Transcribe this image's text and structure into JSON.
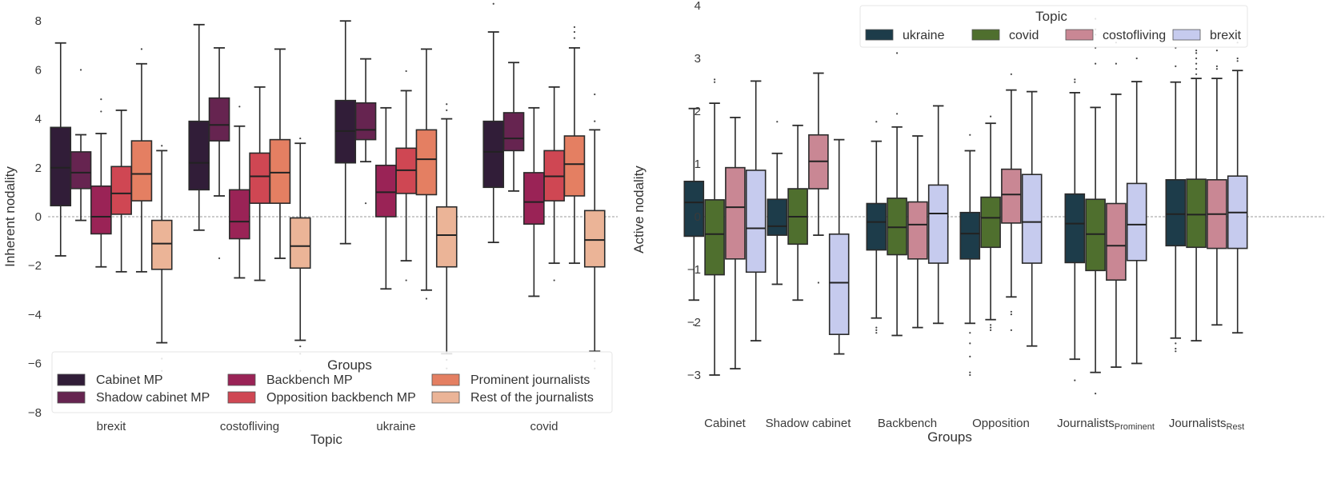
{
  "chart_data": [
    {
      "type": "box",
      "title": "",
      "xlabel": "Topic",
      "ylabel": "Inherent nodality",
      "ylim": [
        -8,
        8.6
      ],
      "yticks": [
        8,
        6,
        4,
        2,
        0,
        -2,
        -4,
        -6,
        -8
      ],
      "yticks_labels": [
        "8",
        "6",
        "4",
        "2",
        "0",
        "−2",
        "−4",
        "−6",
        "−8"
      ],
      "reference_line": 0,
      "categories": [
        "brexit",
        "costofliving",
        "ukraine",
        "covid"
      ],
      "legend": {
        "title": "Groups",
        "placement": "bottom",
        "entries": [
          "Cabinet MP",
          "Shadow cabinet MP",
          "Backbench MP",
          "Opposition backbench MP",
          "Prominent journalists",
          "Rest of the journalists"
        ]
      },
      "series": [
        {
          "name": "Cabinet MP",
          "color": "#311d38",
          "boxes": [
            {
              "whislo": -1.6,
              "q1": 0.45,
              "med": 2.0,
              "q3": 3.65,
              "whishi": 7.1,
              "fliers": []
            },
            {
              "whislo": -0.55,
              "q1": 1.1,
              "med": 2.2,
              "q3": 3.9,
              "whishi": 7.85,
              "fliers": []
            },
            {
              "whislo": -1.1,
              "q1": 2.2,
              "med": 3.5,
              "q3": 4.75,
              "whishi": 8.0,
              "fliers": []
            },
            {
              "whislo": -1.05,
              "q1": 1.2,
              "med": 2.65,
              "q3": 3.9,
              "whishi": 7.55,
              "fliers": [
                8.7
              ]
            }
          ]
        },
        {
          "name": "Shadow cabinet MP",
          "color": "#662450",
          "boxes": [
            {
              "whislo": -0.15,
              "q1": 1.15,
              "med": 1.8,
              "q3": 2.65,
              "whishi": 3.35,
              "fliers": [
                6.0
              ]
            },
            {
              "whislo": 0.85,
              "q1": 3.1,
              "med": 3.75,
              "q3": 4.85,
              "whishi": 6.9,
              "fliers": [
                -1.7
              ]
            },
            {
              "whislo": 2.25,
              "q1": 3.15,
              "med": 3.55,
              "q3": 4.65,
              "whishi": 6.45,
              "fliers": [
                0.55
              ]
            },
            {
              "whislo": 1.05,
              "q1": 2.7,
              "med": 3.2,
              "q3": 4.25,
              "whishi": 6.3,
              "fliers": []
            }
          ]
        },
        {
          "name": "Backbench MP",
          "color": "#9a2356",
          "boxes": [
            {
              "whislo": -2.05,
              "q1": -0.7,
              "med": 0.0,
              "q3": 1.25,
              "whishi": 3.4,
              "fliers": [
                4.8,
                4.3
              ]
            },
            {
              "whislo": -2.5,
              "q1": -0.9,
              "med": -0.2,
              "q3": 1.1,
              "whishi": 3.7,
              "fliers": [
                4.5
              ]
            },
            {
              "whislo": -2.95,
              "q1": 0.0,
              "med": 1.0,
              "q3": 2.1,
              "whishi": 4.45,
              "fliers": []
            },
            {
              "whislo": -3.25,
              "q1": -0.3,
              "med": 0.6,
              "q3": 1.8,
              "whishi": 4.45,
              "fliers": []
            }
          ]
        },
        {
          "name": "Opposition backbench MP",
          "color": "#cf4753",
          "boxes": [
            {
              "whislo": -2.25,
              "q1": 0.1,
              "med": 0.95,
              "q3": 2.05,
              "whishi": 4.35,
              "fliers": []
            },
            {
              "whislo": -2.6,
              "q1": 0.55,
              "med": 1.65,
              "q3": 2.6,
              "whishi": 5.3,
              "fliers": []
            },
            {
              "whislo": -1.8,
              "q1": 0.95,
              "med": 1.9,
              "q3": 2.8,
              "whishi": 5.15,
              "fliers": [
                5.95,
                -2.6
              ]
            },
            {
              "whislo": -1.9,
              "q1": 0.65,
              "med": 1.65,
              "q3": 2.7,
              "whishi": 5.3,
              "fliers": [
                -2.6
              ]
            }
          ]
        },
        {
          "name": "Prominent journalists",
          "color": "#e47f62",
          "boxes": [
            {
              "whislo": -2.25,
              "q1": 0.65,
              "med": 1.75,
              "q3": 3.1,
              "whishi": 6.25,
              "fliers": [
                6.85
              ]
            },
            {
              "whislo": -1.7,
              "q1": 0.55,
              "med": 1.8,
              "q3": 3.15,
              "whishi": 6.85,
              "fliers": []
            },
            {
              "whislo": -3.0,
              "q1": 0.9,
              "med": 2.35,
              "q3": 3.55,
              "whishi": 6.85,
              "fliers": [
                -3.35
              ]
            },
            {
              "whislo": -1.9,
              "q1": 0.85,
              "med": 2.15,
              "q3": 3.3,
              "whishi": 6.9,
              "fliers": [
                7.3,
                7.55,
                7.75
              ]
            }
          ]
        },
        {
          "name": "Rest of the journalists",
          "color": "#ebb497",
          "boxes": [
            {
              "whislo": -5.15,
              "q1": -2.15,
              "med": -1.1,
              "q3": -0.15,
              "whishi": 2.7,
              "fliers": [
                2.9,
                -5.8,
                -6.3
              ]
            },
            {
              "whislo": -5.05,
              "q1": -2.1,
              "med": -1.2,
              "q3": -0.05,
              "whishi": 3.0,
              "fliers": [
                3.2,
                -5.3,
                -5.6,
                -6.3
              ]
            },
            {
              "whislo": -5.6,
              "q1": -2.05,
              "med": -0.75,
              "q3": 0.4,
              "whishi": 4.0,
              "fliers": [
                4.35,
                4.6,
                -5.85,
                -6.2
              ]
            },
            {
              "whislo": -5.5,
              "q1": -2.05,
              "med": -0.95,
              "q3": 0.25,
              "whishi": 3.55,
              "fliers": [
                3.9,
                5.0,
                -5.9,
                -6.2
              ]
            }
          ]
        }
      ]
    },
    {
      "type": "box",
      "title": "",
      "xlabel": "Groups",
      "ylabel": "Active nodality",
      "ylim": [
        -3.9,
        4.05
      ],
      "yticks": [
        4,
        3,
        2,
        1,
        0,
        -1,
        -2,
        -3
      ],
      "yticks_labels": [
        "4",
        "3",
        "2",
        "1",
        "0",
        "−1",
        "−2",
        "−3"
      ],
      "reference_line": 0,
      "categories": [
        {
          "main": "Cabinet",
          "sub": ""
        },
        {
          "main": "Shadow cabinet",
          "sub": ""
        },
        {
          "main": "Backbench",
          "sub": ""
        },
        {
          "main": "Opposition",
          "sub": ""
        },
        {
          "main": "Journalists",
          "sub": "Prominent"
        },
        {
          "main": "Journalists",
          "sub": "Rest"
        }
      ],
      "legend": {
        "title": "Topic",
        "placement": "top-right",
        "entries": [
          "ukraine",
          "covid",
          "costofliving",
          "brexit"
        ]
      },
      "series": [
        {
          "name": "ukraine",
          "color": "#1d3c4a",
          "boxes": [
            {
              "whislo": -1.58,
              "q1": -0.37,
              "med": 0.27,
              "q3": 0.67,
              "whishi": 2.05,
              "fliers": [
                -2.05
              ]
            },
            {
              "whislo": -1.28,
              "q1": -0.35,
              "med": -0.18,
              "q3": 0.33,
              "whishi": 1.2,
              "fliers": [
                1.8
              ]
            },
            {
              "whislo": -1.92,
              "q1": -0.63,
              "med": -0.1,
              "q3": 0.25,
              "whishi": 1.43,
              "fliers": [
                1.8,
                -2.1,
                -2.15,
                -2.2
              ]
            },
            {
              "whislo": -2.02,
              "q1": -0.8,
              "med": -0.32,
              "q3": 0.08,
              "whishi": 1.25,
              "fliers": [
                1.55,
                -2.2,
                -2.4,
                -2.65,
                -2.95,
                -3.0
              ]
            },
            {
              "whislo": -2.7,
              "q1": -0.87,
              "med": -0.13,
              "q3": 0.43,
              "whishi": 2.35,
              "fliers": [
                2.55,
                2.6,
                -3.1
              ]
            },
            {
              "whislo": -2.3,
              "q1": -0.55,
              "med": 0.05,
              "q3": 0.7,
              "whishi": 2.55,
              "fliers": [
                2.85,
                3.2,
                3.4,
                -2.4,
                -2.5,
                -2.55
              ]
            }
          ]
        },
        {
          "name": "covid",
          "color": "#4f6f2e",
          "boxes": [
            {
              "whislo": -3.0,
              "q1": -1.1,
              "med": -0.33,
              "q3": 0.32,
              "whishi": 2.15,
              "fliers": [
                2.55,
                2.6
              ]
            },
            {
              "whislo": -1.58,
              "q1": -0.52,
              "med": 0.0,
              "q3": 0.53,
              "whishi": 1.73,
              "fliers": []
            },
            {
              "whislo": -2.25,
              "q1": -0.72,
              "med": -0.2,
              "q3": 0.35,
              "whishi": 1.7,
              "fliers": [
                1.95,
                3.1
              ]
            },
            {
              "whislo": -1.95,
              "q1": -0.58,
              "med": -0.02,
              "q3": 0.37,
              "whishi": 1.77,
              "fliers": [
                1.9,
                -2.05,
                -2.1,
                -2.15
              ]
            },
            {
              "whislo": -2.95,
              "q1": -1.02,
              "med": -0.33,
              "q3": 0.33,
              "whishi": 2.07,
              "fliers": [
                2.9,
                3.2,
                3.45,
                3.55,
                3.75,
                -3.35
              ]
            },
            {
              "whislo": -2.35,
              "q1": -0.58,
              "med": 0.04,
              "q3": 0.71,
              "whishi": 2.62,
              "fliers": [
                2.7,
                2.8,
                2.9,
                3.0,
                3.1,
                3.15
              ]
            }
          ]
        },
        {
          "name": "costofliving",
          "color": "#c98794",
          "boxes": [
            {
              "whislo": -2.88,
              "q1": -0.8,
              "med": 0.18,
              "q3": 0.93,
              "whishi": 1.88,
              "fliers": []
            },
            {
              "whislo": -0.35,
              "q1": 0.53,
              "med": 1.05,
              "q3": 1.55,
              "whishi": 2.72,
              "fliers": [
                -1.25
              ]
            },
            {
              "whislo": -2.1,
              "q1": -0.8,
              "med": -0.15,
              "q3": 0.28,
              "whishi": 1.53,
              "fliers": []
            },
            {
              "whislo": -1.52,
              "q1": -0.12,
              "med": 0.42,
              "q3": 0.9,
              "whishi": 2.4,
              "fliers": [
                2.7,
                -1.8,
                -1.85,
                -2.15
              ]
            },
            {
              "whislo": -2.85,
              "q1": -1.2,
              "med": -0.55,
              "q3": 0.25,
              "whishi": 2.32,
              "fliers": [
                2.9,
                3.3
              ]
            },
            {
              "whislo": -2.05,
              "q1": -0.6,
              "med": 0.05,
              "q3": 0.7,
              "whishi": 2.62,
              "fliers": [
                2.8,
                2.85,
                3.15
              ]
            }
          ]
        },
        {
          "name": "brexit",
          "color": "#c6cbee",
          "boxes": [
            {
              "whislo": -2.35,
              "q1": -1.05,
              "med": -0.22,
              "q3": 0.88,
              "whishi": 2.57,
              "fliers": []
            },
            {
              "whislo": -2.6,
              "q1": -2.23,
              "med": -1.25,
              "q3": -0.33,
              "whishi": 1.46,
              "fliers": []
            },
            {
              "whislo": -2.02,
              "q1": -0.88,
              "med": 0.06,
              "q3": 0.6,
              "whishi": 2.1,
              "fliers": []
            },
            {
              "whislo": -2.45,
              "q1": -0.88,
              "med": -0.1,
              "q3": 0.8,
              "whishi": 2.37,
              "fliers": []
            },
            {
              "whislo": -2.78,
              "q1": -0.83,
              "med": -0.15,
              "q3": 0.63,
              "whishi": 2.56,
              "fliers": [
                3.0
              ]
            },
            {
              "whislo": -2.2,
              "q1": -0.6,
              "med": 0.08,
              "q3": 0.77,
              "whishi": 2.77,
              "fliers": [
                2.95,
                3.0,
                3.3
              ]
            }
          ]
        }
      ]
    }
  ]
}
